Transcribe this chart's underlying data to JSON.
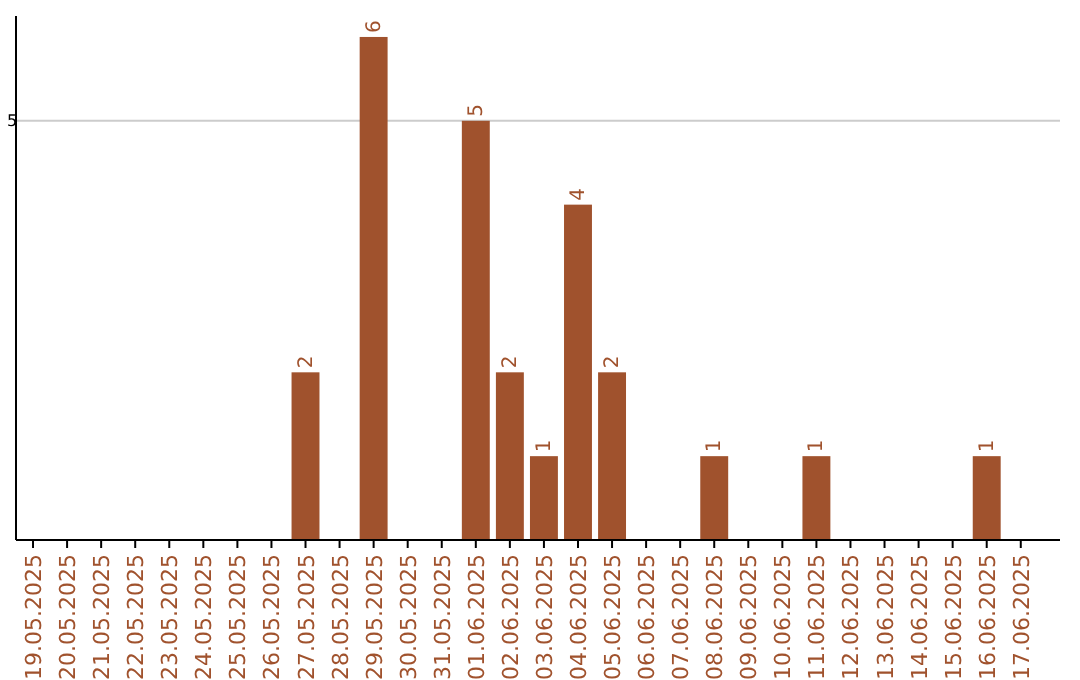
{
  "chart_data": {
    "type": "bar",
    "categories": [
      "19.05.2025",
      "20.05.2025",
      "21.05.2025",
      "22.05.2025",
      "23.05.2025",
      "24.05.2025",
      "25.05.2025",
      "26.05.2025",
      "27.05.2025",
      "28.05.2025",
      "29.05.2025",
      "30.05.2025",
      "31.05.2025",
      "01.06.2025",
      "02.06.2025",
      "03.06.2025",
      "04.06.2025",
      "05.06.2025",
      "06.06.2025",
      "07.06.2025",
      "08.06.2025",
      "09.06.2025",
      "10.06.2025",
      "11.06.2025",
      "12.06.2025",
      "13.06.2025",
      "14.06.2025",
      "15.06.2025",
      "16.06.2025",
      "17.06.2025"
    ],
    "values": [
      0,
      0,
      0,
      0,
      0,
      0,
      0,
      0,
      2,
      0,
      6,
      0,
      0,
      5,
      2,
      1,
      4,
      2,
      0,
      0,
      1,
      0,
      0,
      1,
      0,
      0,
      0,
      0,
      1,
      0
    ],
    "value_labels": [
      null,
      null,
      null,
      null,
      null,
      null,
      null,
      null,
      "2",
      null,
      "6",
      null,
      null,
      "5",
      "2",
      "1",
      "4",
      "2",
      null,
      null,
      "1",
      null,
      null,
      "1",
      null,
      null,
      null,
      null,
      "1",
      null
    ],
    "color": "#a0522d",
    "ylim": [
      0,
      6.25
    ],
    "yticks": [
      5
    ],
    "grid": "y"
  }
}
